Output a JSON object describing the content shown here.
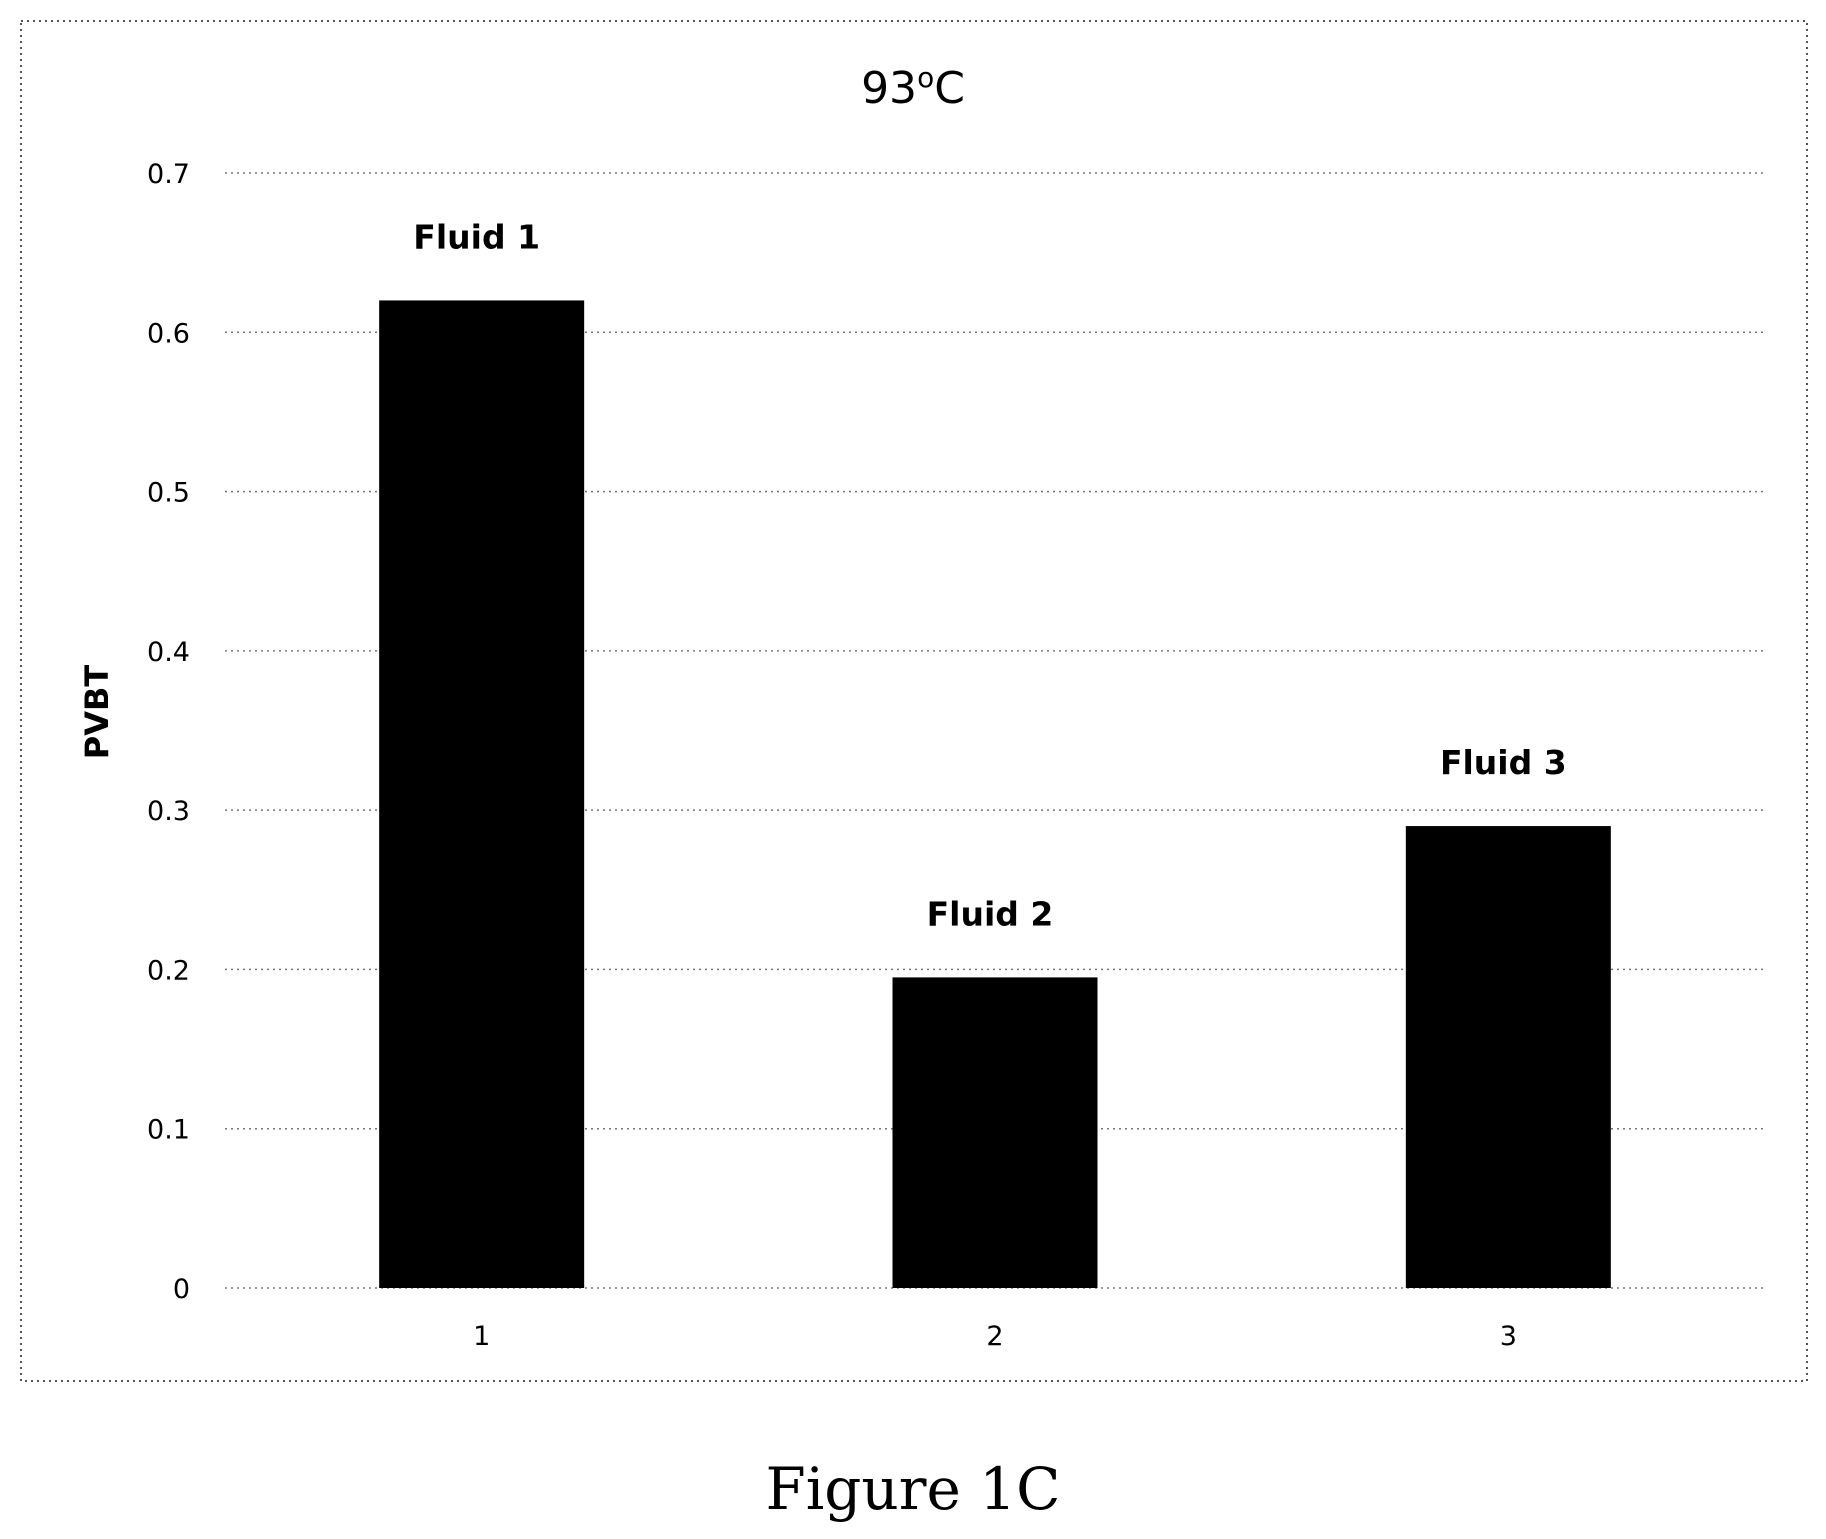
{
  "chart_data": {
    "type": "bar",
    "title_main": "93",
    "title_sup": "o",
    "title_tail": "C",
    "ylabel": "PVBT",
    "xlabel": "",
    "categories": [
      "1",
      "2",
      "3"
    ],
    "values": [
      0.62,
      0.195,
      0.29
    ],
    "bar_labels": [
      "Fluid 1",
      "Fluid 2",
      "Fluid 3"
    ],
    "ylim": [
      0,
      0.7
    ],
    "yticks": [
      0,
      0.1,
      0.2,
      0.3,
      0.4,
      0.5,
      0.6,
      0.7
    ],
    "ytick_labels": [
      "0",
      "0.1",
      "0.2",
      "0.3",
      "0.4",
      "0.5",
      "0.6",
      "0.7"
    ],
    "grid": true,
    "bar_color": "#000000"
  },
  "caption": "Figure 1C"
}
